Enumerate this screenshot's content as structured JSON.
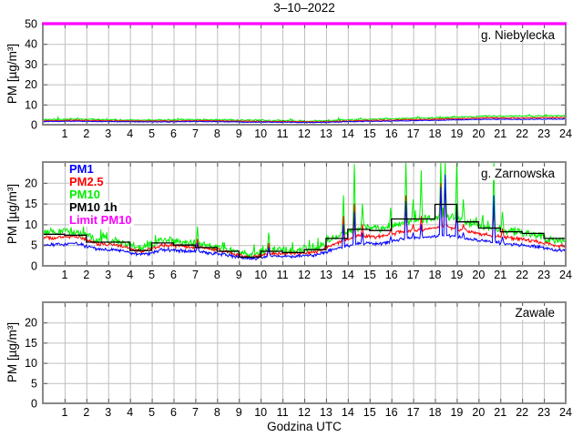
{
  "title": "3–10–2022",
  "xlabel": "Godzina UTC",
  "ylabel": "PM [µg/m³]",
  "legend": [
    {
      "label": "PM1",
      "color_key": "pm1"
    },
    {
      "label": "PM2.5",
      "color_key": "pm2_5"
    },
    {
      "label": "PM10",
      "color_key": "pm10"
    },
    {
      "label": "PM10 1h",
      "color_key": "pm10_1h"
    },
    {
      "label": "Limit PM10",
      "color_key": "limit"
    }
  ],
  "colors": {
    "pm1": "#0000ff",
    "pm2_5": "#ff0000",
    "pm10": "#00ee00",
    "pm10_1h": "#000000",
    "limit": "#ff00ff",
    "frame": "#888888",
    "grid": "#bfbfbf",
    "tick": "#555555",
    "text": "#000000"
  },
  "x_ticks": [
    1,
    2,
    3,
    4,
    5,
    6,
    7,
    8,
    9,
    10,
    11,
    12,
    13,
    14,
    15,
    16,
    17,
    18,
    19,
    20,
    21,
    22,
    23,
    24
  ],
  "chart_data": [
    {
      "type": "line",
      "station": "g. Niebylecka",
      "xlim": [
        0,
        24
      ],
      "ylim": [
        0,
        50
      ],
      "yticks": [
        0,
        10,
        20,
        30,
        40,
        50
      ],
      "limit_pm10": 50,
      "grid": true,
      "x_hour_centers": [
        0.5,
        1.5,
        2.5,
        3.5,
        4.5,
        5.5,
        6.5,
        7.5,
        8.5,
        9.5,
        10.5,
        11.5,
        12.5,
        13.5,
        14.5,
        15.5,
        16.5,
        17.5,
        18.5,
        19.5,
        20.5,
        21.5,
        22.5,
        23.5
      ],
      "series": [
        {
          "name": "PM1",
          "color_key": "pm1",
          "noise": 0.25,
          "hourly_baseline": [
            1.6,
            1.7,
            1.6,
            1.5,
            1.4,
            1.4,
            1.5,
            1.6,
            1.4,
            1.3,
            1.3,
            1.2,
            1.1,
            1.3,
            1.6,
            1.7,
            1.9,
            2.1,
            2.3,
            2.5,
            2.7,
            2.6,
            2.7,
            2.8
          ]
        },
        {
          "name": "PM2.5",
          "color_key": "pm2_5",
          "noise": 0.3,
          "hourly_baseline": [
            2.0,
            2.2,
            2.0,
            1.9,
            1.8,
            1.8,
            1.9,
            2.0,
            1.8,
            1.7,
            1.6,
            1.5,
            1.4,
            1.7,
            2.0,
            2.2,
            2.4,
            2.6,
            2.9,
            3.1,
            3.4,
            3.3,
            3.4,
            3.5
          ]
        },
        {
          "name": "PM10",
          "color_key": "pm10",
          "noise": 0.55,
          "hourly_baseline": [
            2.6,
            2.8,
            2.5,
            2.4,
            2.3,
            2.3,
            2.4,
            2.5,
            2.3,
            2.2,
            2.1,
            1.9,
            1.8,
            2.2,
            2.6,
            2.8,
            3.0,
            3.3,
            3.6,
            3.9,
            4.3,
            4.2,
            4.3,
            4.4
          ]
        }
      ],
      "spikes": []
    },
    {
      "type": "line",
      "station": "g. Zarnowska",
      "xlim": [
        0,
        24
      ],
      "ylim": [
        0,
        25
      ],
      "yticks": [
        0,
        5,
        10,
        15,
        20
      ],
      "limit_pm10": 50,
      "grid": true,
      "x_hour_centers": [
        0.5,
        1.5,
        2.5,
        3.5,
        4.5,
        5.5,
        6.5,
        7.5,
        8.5,
        9.5,
        10.5,
        11.5,
        12.5,
        13.5,
        14.5,
        15.5,
        16.5,
        17.5,
        18.5,
        19.5,
        20.5,
        21.5,
        22.5,
        23.5
      ],
      "pm10_1h_hourly": [
        7.6,
        7.4,
        5.7,
        5.7,
        3.7,
        5.5,
        5.0,
        4.4,
        3.5,
        2.1,
        3.5,
        3.2,
        3.9,
        6.6,
        8.8,
        8.5,
        11.3,
        11.3,
        14.8,
        10.6,
        9.1,
        8.2,
        7.8,
        6.6
      ],
      "series": [
        {
          "name": "PM1",
          "color_key": "pm1",
          "noise": 0.5,
          "hourly_baseline": [
            5.0,
            5.4,
            4.0,
            3.8,
            2.6,
            3.9,
            3.6,
            3.2,
            2.6,
            1.6,
            2.4,
            2.3,
            2.6,
            4.2,
            5.5,
            5.3,
            6.5,
            6.8,
            7.5,
            6.5,
            5.8,
            5.2,
            4.8,
            3.8
          ]
        },
        {
          "name": "PM2.5",
          "color_key": "pm2_5",
          "noise": 0.55,
          "hourly_baseline": [
            6.7,
            7.1,
            5.3,
            5.0,
            3.4,
            5.1,
            4.7,
            4.2,
            3.3,
            2.0,
            3.0,
            2.9,
            3.3,
            5.5,
            7.2,
            7.0,
            8.3,
            8.6,
            9.5,
            8.3,
            7.3,
            6.6,
            6.1,
            4.8
          ]
        },
        {
          "name": "PM10",
          "color_key": "pm10",
          "noise": 1.2,
          "hourly_baseline": [
            8.0,
            8.4,
            6.3,
            6.0,
            4.2,
            6.1,
            5.6,
            5.0,
            4.0,
            2.6,
            3.8,
            3.6,
            4.2,
            7.0,
            9.2,
            9.0,
            10.5,
            11.0,
            12.0,
            10.5,
            9.2,
            8.2,
            7.5,
            6.0
          ]
        }
      ],
      "spikes": [
        {
          "x": 7.1,
          "pm1": 5.5,
          "pm2_5": 6.5,
          "pm10": 9.5
        },
        {
          "x": 10.35,
          "pm1": 4.5,
          "pm2_5": 5.5,
          "pm10": 8.0
        },
        {
          "x": 13.8,
          "pm1": 10.0,
          "pm2_5": 12.0,
          "pm10": 17.0
        },
        {
          "x": 14.3,
          "pm1": 13.0,
          "pm2_5": 15.0,
          "pm10": 24.5
        },
        {
          "x": 14.65,
          "pm1": 8.0,
          "pm2_5": 10.0,
          "pm10": 15.0
        },
        {
          "x": 15.95,
          "pm1": 7.0,
          "pm2_5": 9.0,
          "pm10": 14.0
        },
        {
          "x": 16.65,
          "pm1": 15.5,
          "pm2_5": 17.0,
          "pm10": 25.0
        },
        {
          "x": 17.0,
          "pm1": 8.0,
          "pm2_5": 10.0,
          "pm10": 16.0
        },
        {
          "x": 17.35,
          "pm1": 10.0,
          "pm2_5": 12.0,
          "pm10": 23.0
        },
        {
          "x": 18.25,
          "pm1": 19.0,
          "pm2_5": 20.0,
          "pm10": 25.0
        },
        {
          "x": 18.45,
          "pm1": 22.0,
          "pm2_5": 21.0,
          "pm10": 25.0
        },
        {
          "x": 19.0,
          "pm1": 15.0,
          "pm2_5": 13.0,
          "pm10": 25.0
        },
        {
          "x": 19.3,
          "pm1": 8.0,
          "pm2_5": 10.0,
          "pm10": 16.0
        },
        {
          "x": 20.7,
          "pm1": 17.0,
          "pm2_5": 15.0,
          "pm10": 25.0
        },
        {
          "x": 21.1,
          "pm1": 7.0,
          "pm2_5": 9.0,
          "pm10": 13.0
        }
      ]
    },
    {
      "type": "line",
      "station": "Zawale",
      "xlim": [
        0,
        24
      ],
      "ylim": [
        0,
        25
      ],
      "yticks": [
        0,
        5,
        10,
        15,
        20
      ],
      "grid": true,
      "series": [],
      "spikes": []
    }
  ]
}
